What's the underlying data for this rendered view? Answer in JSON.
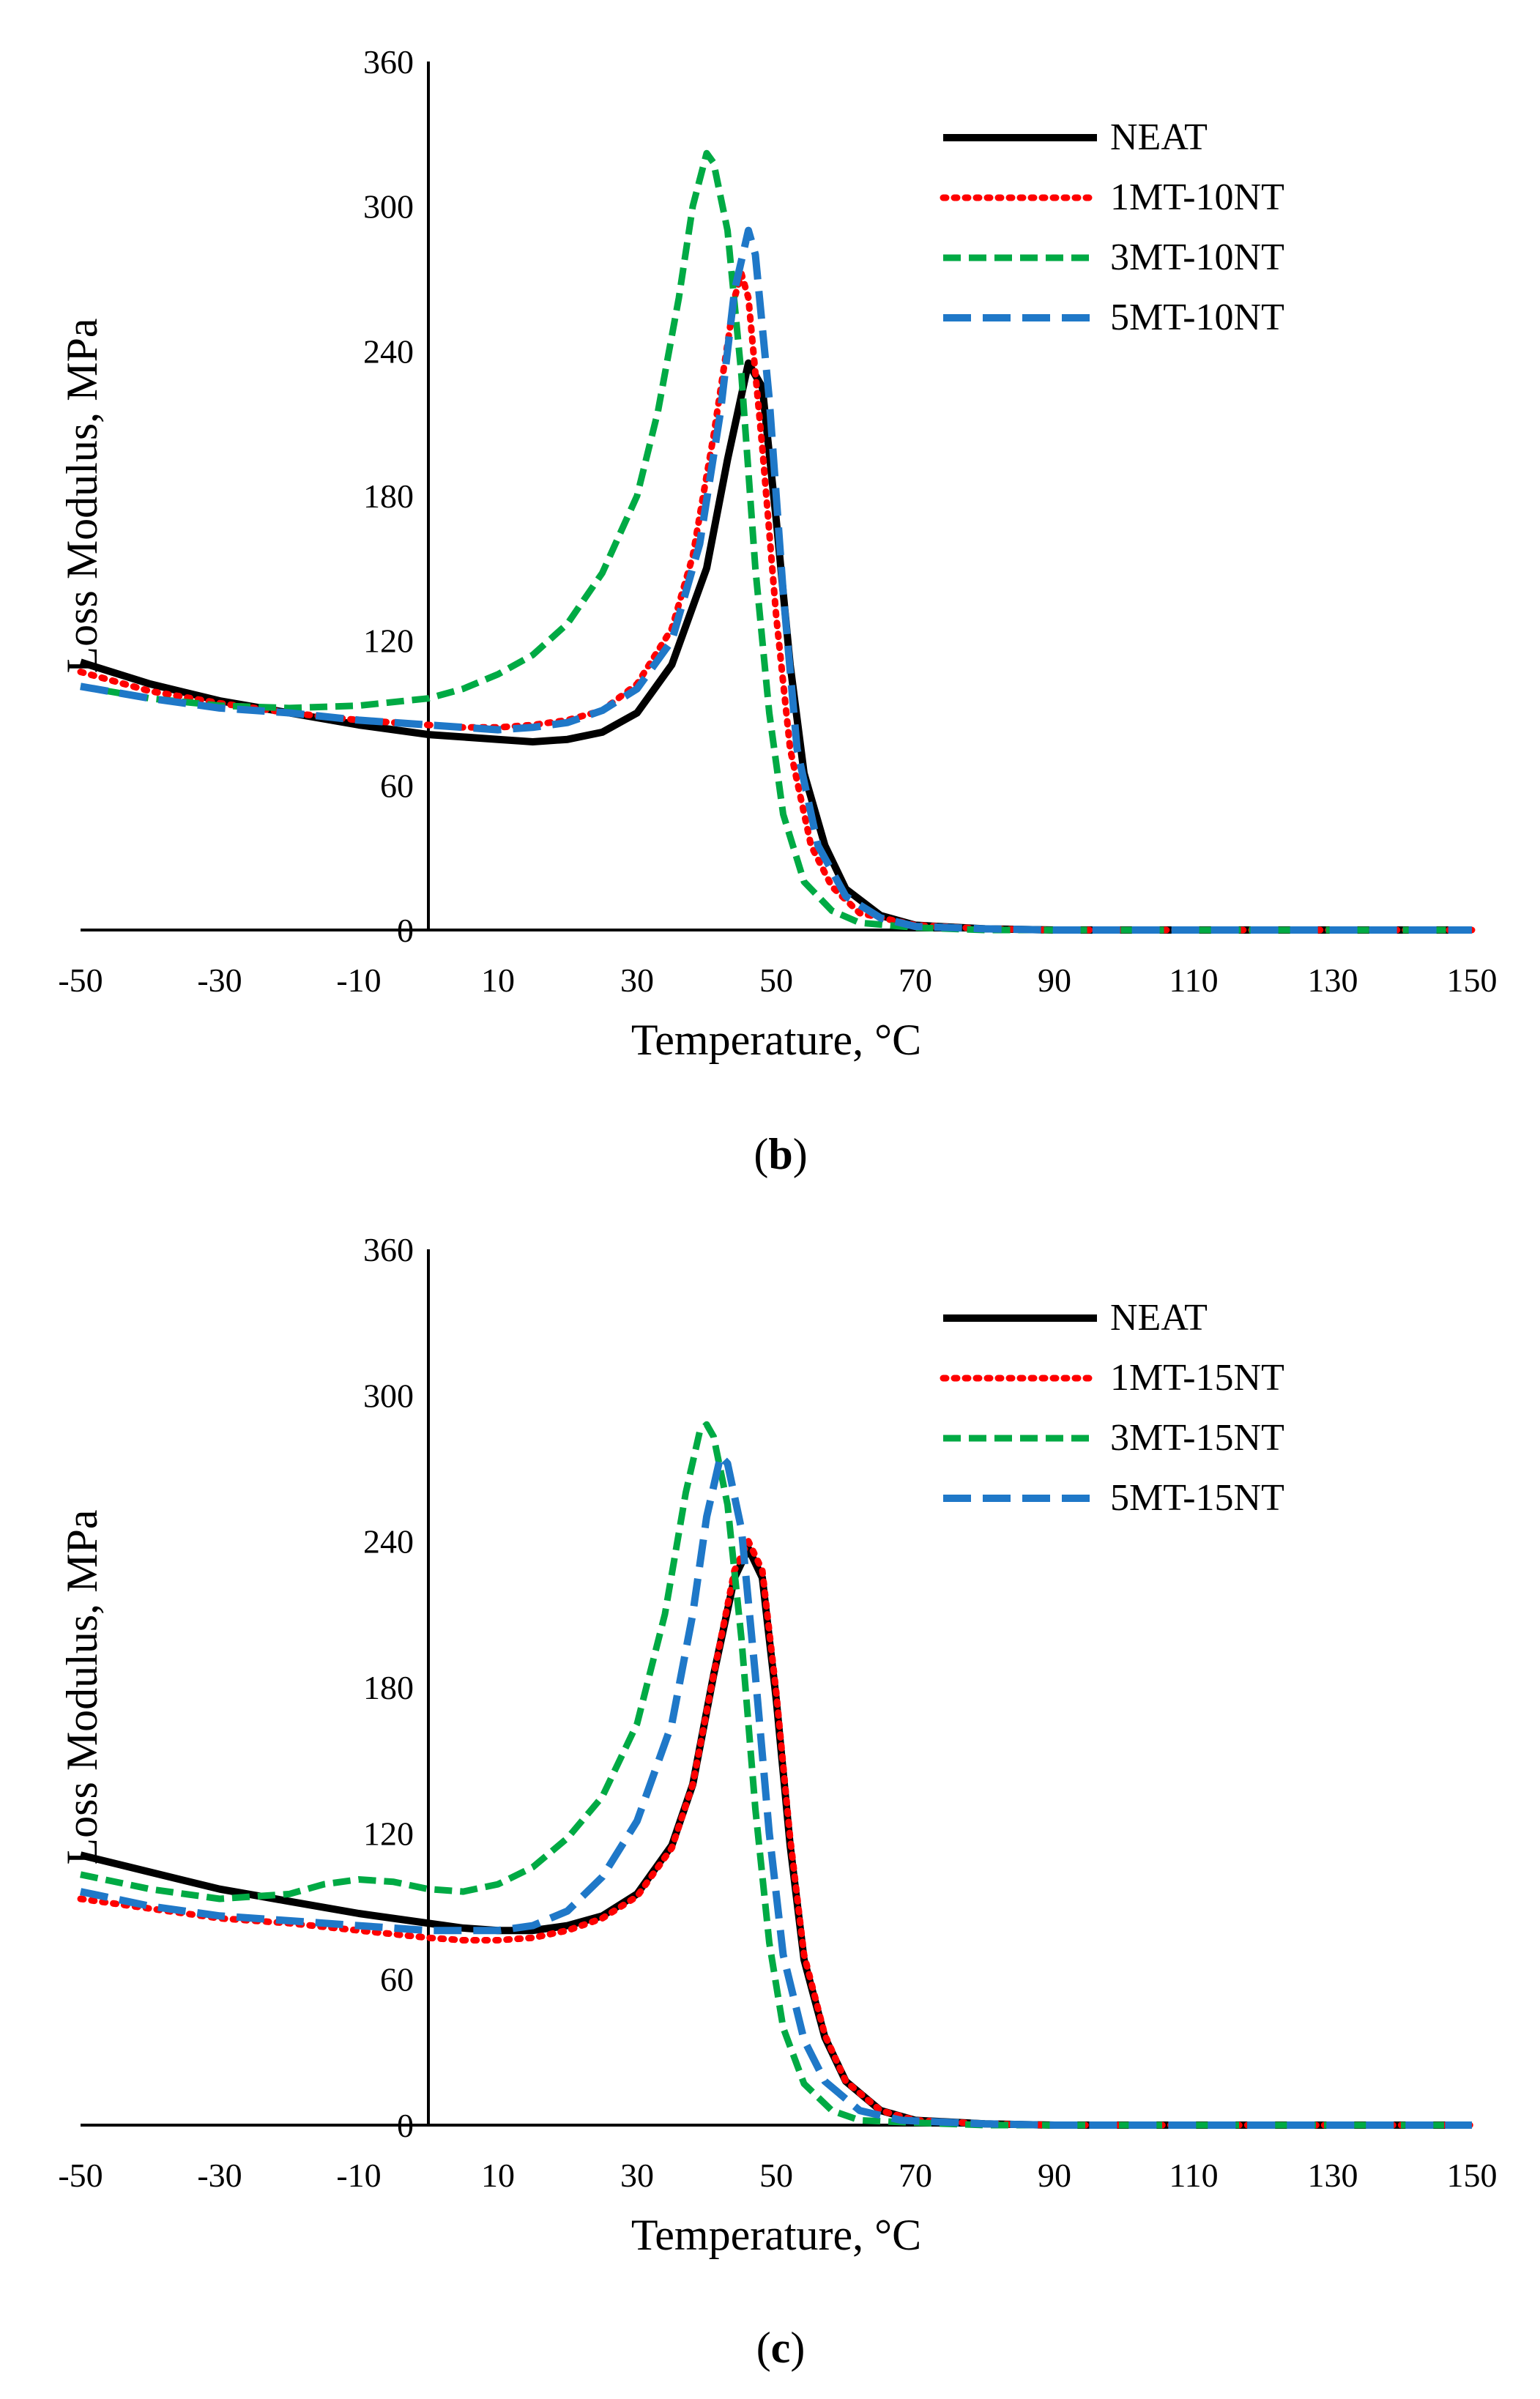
{
  "chart_data": [
    {
      "type": "line",
      "panel_label": "b",
      "xlabel": "Temperature, °C",
      "ylabel": "Loss Modulus, MPa",
      "xlim": [
        -50,
        150
      ],
      "ylim": [
        0,
        360
      ],
      "x_ticks": [
        -50,
        -30,
        -10,
        10,
        30,
        50,
        70,
        90,
        110,
        130,
        150
      ],
      "y_ticks": [
        0,
        60,
        120,
        180,
        240,
        300,
        360
      ],
      "y_axis_at_x": 0,
      "legend_position": "top-right",
      "series": [
        {
          "name": "NEAT",
          "color": "#000000",
          "style": "solid",
          "points": [
            [
              -50,
              111
            ],
            [
              -40,
              102
            ],
            [
              -30,
              95
            ],
            [
              -20,
              90
            ],
            [
              -10,
              85
            ],
            [
              0,
              81
            ],
            [
              10,
              79
            ],
            [
              15,
              78
            ],
            [
              20,
              79
            ],
            [
              25,
              82
            ],
            [
              30,
              90
            ],
            [
              35,
              110
            ],
            [
              40,
              150
            ],
            [
              43,
              195
            ],
            [
              46,
              235
            ],
            [
              48,
              225
            ],
            [
              50,
              170
            ],
            [
              52,
              110
            ],
            [
              54,
              65
            ],
            [
              57,
              35
            ],
            [
              60,
              17
            ],
            [
              65,
              6
            ],
            [
              70,
              2
            ],
            [
              80,
              0.5
            ],
            [
              90,
              0
            ],
            [
              150,
              0
            ]
          ]
        },
        {
          "name": "1MT-10NT",
          "color": "#ff0000",
          "style": "dotted",
          "points": [
            [
              -50,
              107
            ],
            [
              -40,
              99
            ],
            [
              -30,
              94
            ],
            [
              -20,
              90
            ],
            [
              -10,
              87
            ],
            [
              0,
              85
            ],
            [
              5,
              84
            ],
            [
              10,
              84
            ],
            [
              15,
              85
            ],
            [
              20,
              87
            ],
            [
              25,
              91
            ],
            [
              30,
              102
            ],
            [
              35,
              125
            ],
            [
              38,
              155
            ],
            [
              41,
              205
            ],
            [
              44,
              262
            ],
            [
              45,
              272
            ],
            [
              46,
              262
            ],
            [
              48,
              200
            ],
            [
              50,
              130
            ],
            [
              52,
              75
            ],
            [
              55,
              35
            ],
            [
              58,
              18
            ],
            [
              62,
              7
            ],
            [
              70,
              2
            ],
            [
              80,
              0.5
            ],
            [
              90,
              0
            ],
            [
              150,
              0
            ]
          ]
        },
        {
          "name": "3MT-10NT",
          "color": "#00aa44",
          "style": "dashed",
          "points": [
            [
              -50,
              101
            ],
            [
              -40,
              96
            ],
            [
              -30,
              93
            ],
            [
              -20,
              92
            ],
            [
              -10,
              93
            ],
            [
              0,
              96
            ],
            [
              5,
              100
            ],
            [
              10,
              106
            ],
            [
              15,
              114
            ],
            [
              20,
              127
            ],
            [
              25,
              148
            ],
            [
              30,
              180
            ],
            [
              33,
              215
            ],
            [
              36,
              262
            ],
            [
              38,
              300
            ],
            [
              40,
              322
            ],
            [
              41,
              318
            ],
            [
              43,
              290
            ],
            [
              45,
              230
            ],
            [
              47,
              150
            ],
            [
              49,
              90
            ],
            [
              51,
              48
            ],
            [
              54,
              20
            ],
            [
              58,
              8
            ],
            [
              62,
              3
            ],
            [
              70,
              1
            ],
            [
              80,
              0
            ],
            [
              150,
              0
            ]
          ]
        },
        {
          "name": "5MT-10NT",
          "color": "#1f78c8",
          "style": "longdash",
          "points": [
            [
              -50,
              101
            ],
            [
              -40,
              96
            ],
            [
              -30,
              92
            ],
            [
              -20,
              90
            ],
            [
              -10,
              87
            ],
            [
              0,
              85
            ],
            [
              5,
              84
            ],
            [
              10,
              83
            ],
            [
              15,
              84
            ],
            [
              20,
              86
            ],
            [
              25,
              91
            ],
            [
              30,
              100
            ],
            [
              35,
              120
            ],
            [
              39,
              160
            ],
            [
              42,
              215
            ],
            [
              44,
              265
            ],
            [
              46,
              290
            ],
            [
              47,
              280
            ],
            [
              49,
              220
            ],
            [
              51,
              140
            ],
            [
              53,
              75
            ],
            [
              56,
              35
            ],
            [
              60,
              14
            ],
            [
              65,
              5
            ],
            [
              70,
              1.5
            ],
            [
              80,
              0.5
            ],
            [
              90,
              0
            ],
            [
              150,
              0
            ]
          ]
        }
      ]
    },
    {
      "type": "line",
      "panel_label": "c",
      "xlabel": "Temperature, °C",
      "ylabel": "Loss Modulus, MPa",
      "xlim": [
        -50,
        150
      ],
      "ylim": [
        0,
        360
      ],
      "x_ticks": [
        -50,
        -30,
        -10,
        10,
        30,
        50,
        70,
        90,
        110,
        130,
        150
      ],
      "y_ticks": [
        0,
        60,
        120,
        180,
        240,
        300,
        360
      ],
      "y_axis_at_x": 0,
      "legend_position": "top-right",
      "series": [
        {
          "name": "NEAT",
          "color": "#000000",
          "style": "solid",
          "points": [
            [
              -50,
              111
            ],
            [
              -40,
              104
            ],
            [
              -30,
              97
            ],
            [
              -20,
              92
            ],
            [
              -10,
              87
            ],
            [
              0,
              83
            ],
            [
              5,
              81
            ],
            [
              10,
              80
            ],
            [
              15,
              80
            ],
            [
              20,
              82
            ],
            [
              25,
              86
            ],
            [
              30,
              95
            ],
            [
              35,
              115
            ],
            [
              38,
              140
            ],
            [
              41,
              185
            ],
            [
              44,
              225
            ],
            [
              46,
              237
            ],
            [
              48,
              225
            ],
            [
              50,
              175
            ],
            [
              52,
              115
            ],
            [
              54,
              68
            ],
            [
              57,
              36
            ],
            [
              60,
              18
            ],
            [
              65,
              6
            ],
            [
              70,
              2
            ],
            [
              80,
              0.5
            ],
            [
              90,
              0
            ],
            [
              150,
              0
            ]
          ]
        },
        {
          "name": "1MT-15NT",
          "color": "#ff0000",
          "style": "dotted",
          "points": [
            [
              -50,
              93
            ],
            [
              -40,
              89
            ],
            [
              -30,
              85
            ],
            [
              -20,
              83
            ],
            [
              -10,
              80
            ],
            [
              0,
              77
            ],
            [
              5,
              76
            ],
            [
              10,
              76
            ],
            [
              15,
              77
            ],
            [
              20,
              80
            ],
            [
              25,
              85
            ],
            [
              30,
              94
            ],
            [
              35,
              114
            ],
            [
              38,
              140
            ],
            [
              41,
              185
            ],
            [
              44,
              228
            ],
            [
              46,
              240
            ],
            [
              48,
              228
            ],
            [
              50,
              178
            ],
            [
              52,
              118
            ],
            [
              54,
              70
            ],
            [
              57,
              37
            ],
            [
              60,
              18
            ],
            [
              65,
              6
            ],
            [
              70,
              2
            ],
            [
              80,
              0.5
            ],
            [
              90,
              0
            ],
            [
              150,
              0
            ]
          ]
        },
        {
          "name": "3MT-15NT",
          "color": "#00aa44",
          "style": "dashed",
          "points": [
            [
              -50,
              103
            ],
            [
              -40,
              97
            ],
            [
              -30,
              93
            ],
            [
              -20,
              95
            ],
            [
              -15,
              99
            ],
            [
              -10,
              101
            ],
            [
              -5,
              100
            ],
            [
              0,
              97
            ],
            [
              5,
              96
            ],
            [
              10,
              99
            ],
            [
              15,
              106
            ],
            [
              20,
              118
            ],
            [
              25,
              135
            ],
            [
              30,
              165
            ],
            [
              34,
              210
            ],
            [
              37,
              260
            ],
            [
              39,
              285
            ],
            [
              40,
              288
            ],
            [
              41,
              283
            ],
            [
              43,
              255
            ],
            [
              45,
              200
            ],
            [
              47,
              130
            ],
            [
              49,
              75
            ],
            [
              51,
              40
            ],
            [
              54,
              17
            ],
            [
              58,
              6
            ],
            [
              62,
              2
            ],
            [
              70,
              1
            ],
            [
              80,
              0
            ],
            [
              150,
              0
            ]
          ]
        },
        {
          "name": "5MT-15NT",
          "color": "#1f78c8",
          "style": "longdash",
          "points": [
            [
              -50,
              96
            ],
            [
              -40,
              90
            ],
            [
              -30,
              86
            ],
            [
              -20,
              84
            ],
            [
              -10,
              82
            ],
            [
              0,
              80
            ],
            [
              5,
              80
            ],
            [
              10,
              80
            ],
            [
              15,
              82
            ],
            [
              20,
              88
            ],
            [
              25,
              102
            ],
            [
              30,
              125
            ],
            [
              35,
              165
            ],
            [
              38,
              210
            ],
            [
              40,
              250
            ],
            [
              42,
              275
            ],
            [
              43,
              272
            ],
            [
              45,
              245
            ],
            [
              47,
              185
            ],
            [
              49,
              120
            ],
            [
              51,
              70
            ],
            [
              54,
              35
            ],
            [
              57,
              18
            ],
            [
              62,
              6
            ],
            [
              68,
              2
            ],
            [
              80,
              0.5
            ],
            [
              90,
              0
            ],
            [
              150,
              0
            ]
          ]
        }
      ]
    }
  ]
}
